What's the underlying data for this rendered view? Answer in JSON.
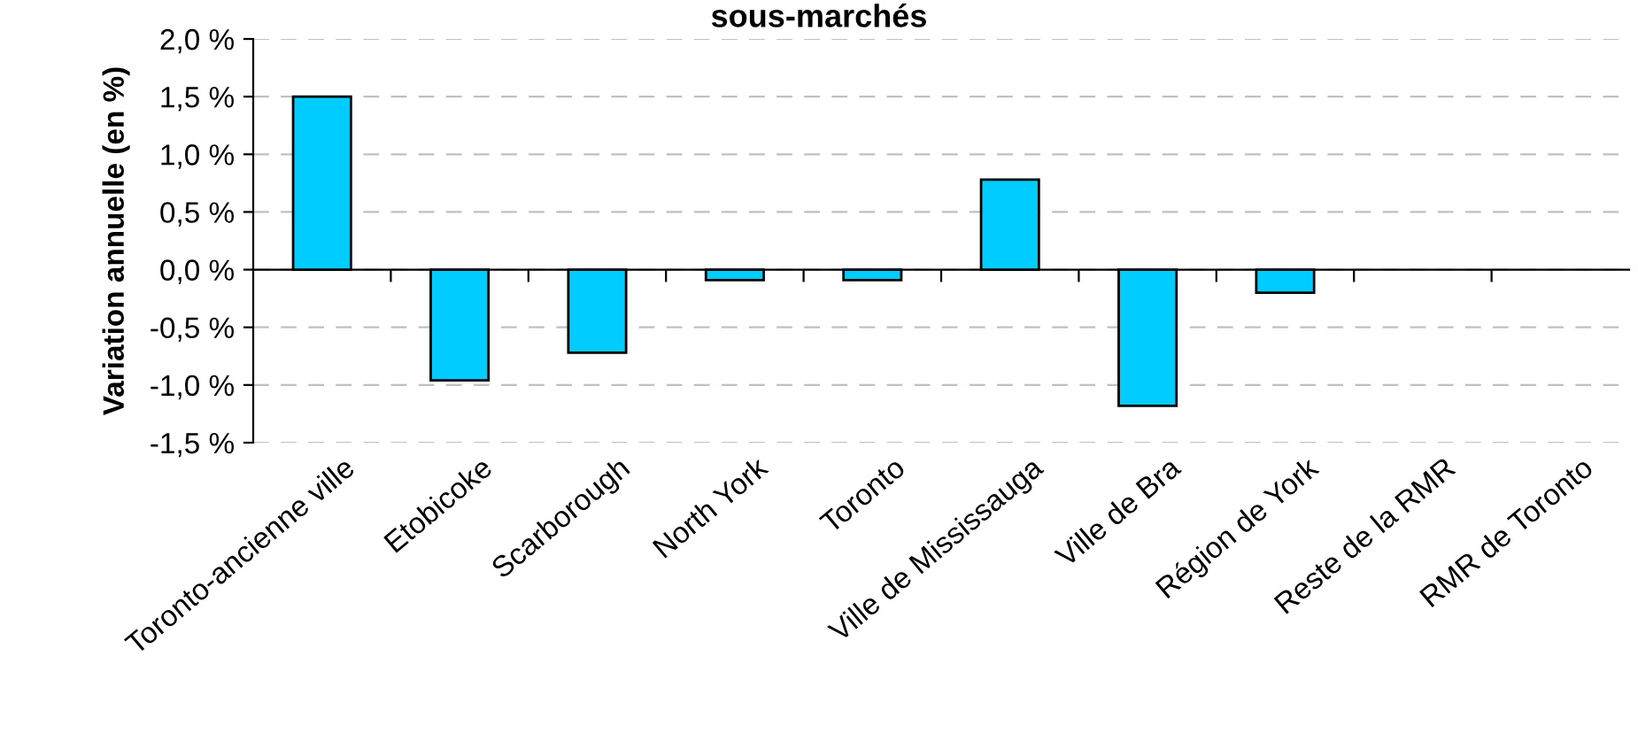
{
  "chart_data": {
    "type": "bar",
    "title": "sous-marchés",
    "ylabel": "Variation annuelle (en %)",
    "categories": [
      "Toronto-ancienne ville",
      "Etobicoke",
      "Scarborough",
      "North York",
      "Toronto",
      "Ville de Mississauga",
      "Ville de Bra",
      "Région de York",
      "Reste de la RMR",
      "RMR de Toronto"
    ],
    "values": [
      1.5,
      -0.96,
      -0.72,
      -0.09,
      -0.09,
      0.78,
      -1.18,
      -0.2,
      null,
      null
    ],
    "color": "#00ccff",
    "ylim": [
      -1.5,
      2.0
    ],
    "yticks": [
      {
        "value": -1.5,
        "label": "-1,5 %"
      },
      {
        "value": -1.0,
        "label": "-1,0 %"
      },
      {
        "value": -0.5,
        "label": "-0,5 %"
      },
      {
        "value": 0.0,
        "label": "0,0 %"
      },
      {
        "value": 0.5,
        "label": "0,5 %"
      },
      {
        "value": 1.0,
        "label": "1,0 %"
      },
      {
        "value": 1.5,
        "label": "1,5 %"
      },
      {
        "value": 2.0,
        "label": "2,0 %"
      }
    ],
    "grid": "y",
    "legend": false
  }
}
